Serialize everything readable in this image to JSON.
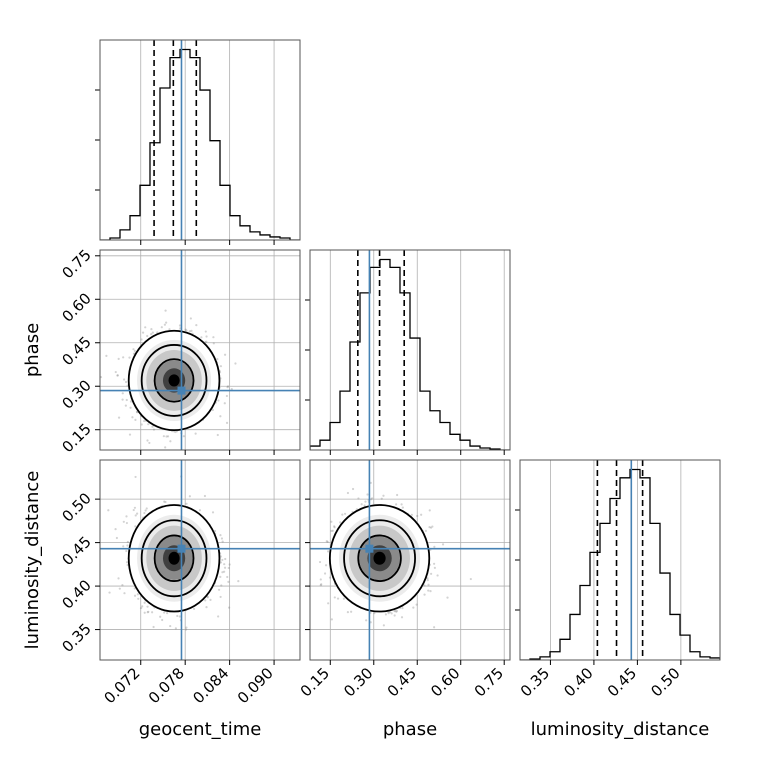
{
  "chart_data": {
    "type": "corner",
    "parameters": [
      "geocent_time",
      "phase",
      "luminosity_distance"
    ],
    "axis_labels": {
      "geocent_time": "geocent_time",
      "phase": "phase",
      "luminosity_distance": "luminosity_distance"
    },
    "ranges": {
      "geocent_time": [
        0.0665,
        0.0935
      ],
      "phase": [
        0.08,
        0.77
      ],
      "luminosity_distance": [
        0.315,
        0.545
      ]
    },
    "ticks": {
      "geocent_time": [
        {
          "value": 0.072,
          "label": "0.072"
        },
        {
          "value": 0.078,
          "label": "0.078"
        },
        {
          "value": 0.084,
          "label": "0.084"
        },
        {
          "value": 0.09,
          "label": "0.090"
        }
      ],
      "phase": [
        {
          "value": 0.15,
          "label": "0.15"
        },
        {
          "value": 0.3,
          "label": "0.30"
        },
        {
          "value": 0.45,
          "label": "0.45"
        },
        {
          "value": 0.6,
          "label": "0.60"
        },
        {
          "value": 0.75,
          "label": "0.75"
        }
      ],
      "luminosity_distance": [
        {
          "value": 0.35,
          "label": "0.35"
        },
        {
          "value": 0.4,
          "label": "0.40"
        },
        {
          "value": 0.45,
          "label": "0.45"
        },
        {
          "value": 0.5,
          "label": "0.50"
        }
      ]
    },
    "injection": {
      "geocent_time": 0.0775,
      "phase": 0.285,
      "luminosity_distance": 0.443
    },
    "quantiles": {
      "geocent_time": [
        0.0738,
        0.0764,
        0.0795
      ],
      "phase": [
        0.245,
        0.32,
        0.405
      ],
      "luminosity_distance": [
        0.404,
        0.426,
        0.456
      ]
    },
    "histograms": {
      "geocent_time": [
        0.0,
        0.01,
        0.05,
        0.12,
        0.27,
        0.48,
        0.75,
        0.9,
        0.94,
        0.9,
        0.74,
        0.49,
        0.27,
        0.12,
        0.07,
        0.04,
        0.025,
        0.015,
        0.01,
        0.0
      ],
      "phase": [
        0.02,
        0.05,
        0.14,
        0.3,
        0.55,
        0.8,
        0.93,
        0.97,
        0.93,
        0.8,
        0.57,
        0.3,
        0.2,
        0.14,
        0.08,
        0.05,
        0.02,
        0.01,
        0.005,
        0.0
      ],
      "luminosity_distance": [
        0.0,
        0.005,
        0.015,
        0.04,
        0.1,
        0.22,
        0.36,
        0.52,
        0.66,
        0.78,
        0.88,
        0.92,
        0.88,
        0.66,
        0.42,
        0.22,
        0.12,
        0.04,
        0.015,
        0.01
      ]
    },
    "pair_stats": [
      {
        "x": "geocent_time",
        "y": "phase",
        "mean_x": 0.0765,
        "mean_y": 0.32,
        "sd_x": 0.0025,
        "sd_y": 0.07
      },
      {
        "x": "geocent_time",
        "y": "luminosity_distance",
        "mean_x": 0.0765,
        "mean_y": 0.432,
        "sd_x": 0.0025,
        "sd_y": 0.025
      },
      {
        "x": "phase",
        "y": "luminosity_distance",
        "mean_x": 0.32,
        "mean_y": 0.432,
        "sd_x": 0.07,
        "sd_y": 0.025
      }
    ],
    "grid": true,
    "colors": {
      "histogram": "#000000",
      "quantile_lines": "#000000",
      "injection": "#4682b4",
      "contours": "#000000",
      "samples": "#808080",
      "grid": "#b0b0b0"
    }
  }
}
